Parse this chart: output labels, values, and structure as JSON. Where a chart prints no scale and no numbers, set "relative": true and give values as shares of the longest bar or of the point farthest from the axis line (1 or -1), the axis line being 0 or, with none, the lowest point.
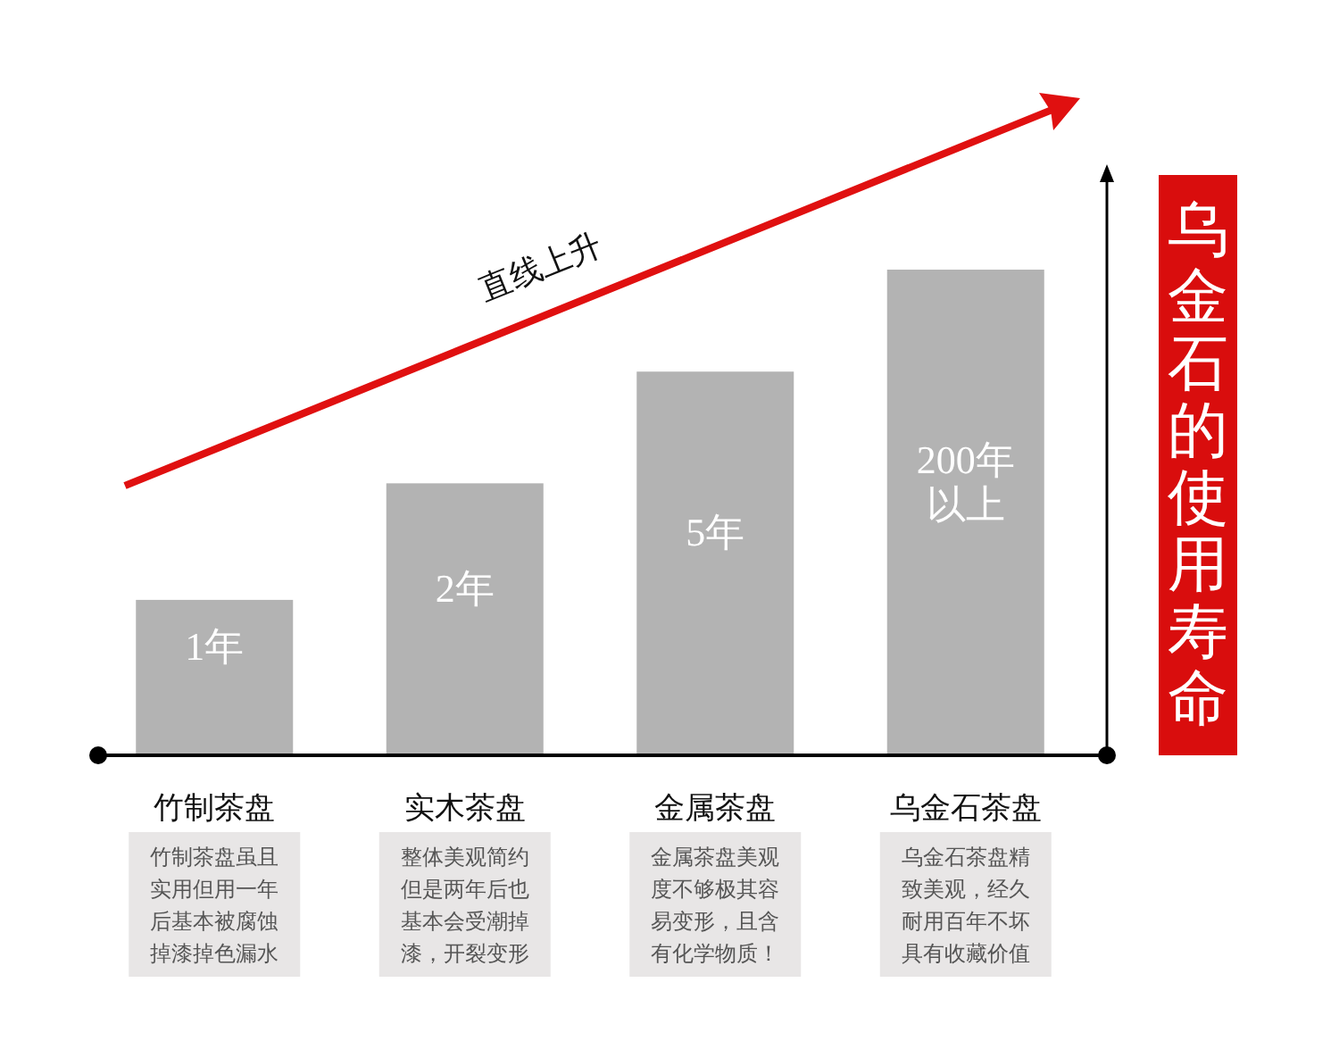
{
  "chart_data": {
    "type": "bar",
    "relative": true,
    "title": "乌金石的使用寿命",
    "categories": [
      "竹制茶盘",
      "实木茶盘",
      "金属茶盘",
      "乌金石茶盘"
    ],
    "values": [
      0.32,
      0.56,
      0.79,
      1
    ],
    "color": "#b3b3b3",
    "annotations": [
      "直线上升",
      "1年",
      "2年",
      "5年",
      "200年以上",
      "竹制茶盘虽且实用但用一年后基本被腐蚀掉漆掉色漏水",
      "整体美观简约但是两年后也基本会受潮掉漆，开裂变形",
      "金属茶盘美观度不够极其容易变形，且含有化学物质！",
      "乌金石茶盘精致美观，经久耐用百年不坏具有收藏价值"
    ]
  }
}
